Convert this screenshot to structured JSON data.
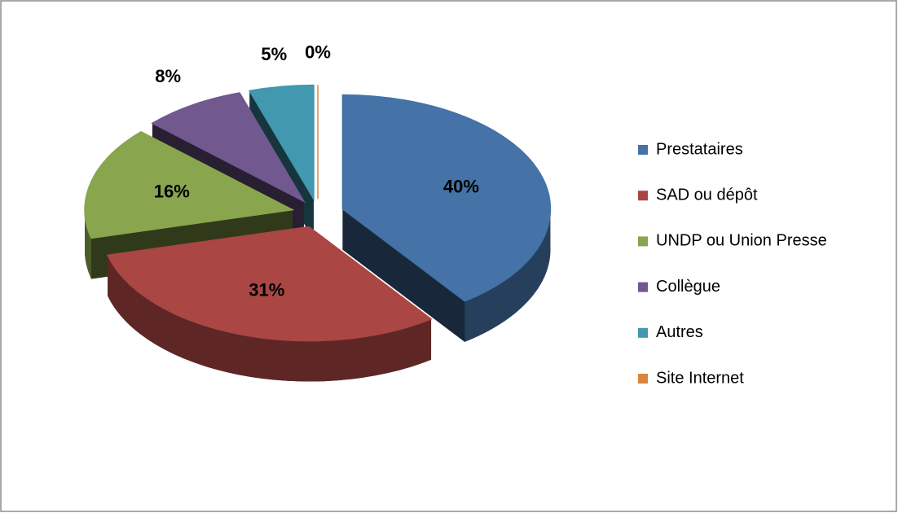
{
  "chart_data": {
    "type": "pie",
    "categories": [
      "Prestataires",
      "SAD ou dépôt",
      "UNDP ou Union Presse",
      "Collègue",
      "Autres",
      "Site Internet"
    ],
    "values": [
      40,
      31,
      16,
      8,
      5,
      0
    ],
    "value_labels": [
      "40%",
      "31%",
      "16%",
      "8%",
      "5%",
      "0%"
    ],
    "colors": [
      "#4572a7",
      "#aa4643",
      "#89a54e",
      "#71588f",
      "#4198af",
      "#db843d"
    ],
    "legend": "right"
  }
}
